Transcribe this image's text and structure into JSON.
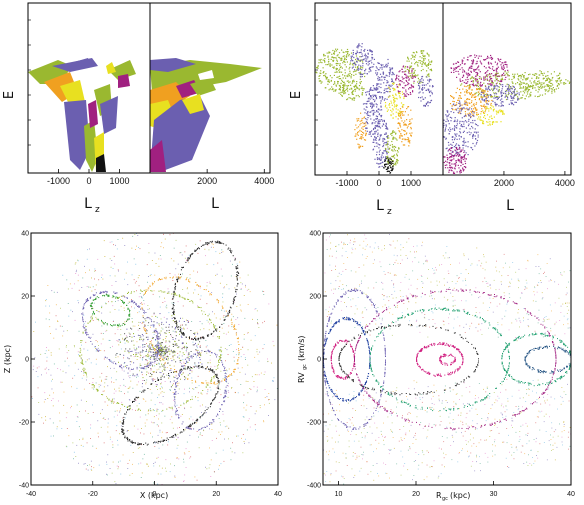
{
  "chart_data": [
    {
      "type": "scatter",
      "panel": "top-left",
      "subpanels": [
        {
          "xlabel_main": "L",
          "xlabel_sub": "z",
          "xticks": [
            "-1000",
            "0",
            "1000"
          ],
          "xlim": [
            -2000,
            2000
          ]
        },
        {
          "xlabel_main": "L",
          "xlabel_sub": "",
          "xticks": [
            "2000",
            "4000"
          ],
          "xlim": [
            0,
            4200
          ]
        }
      ],
      "ylabel": "E",
      "groups": [
        {
          "color": "#6b5fb0",
          "role": "low-energy bound groups"
        },
        {
          "color": "#9ab830",
          "role": "olive groups"
        },
        {
          "color": "#f0a020",
          "role": "orange groups"
        },
        {
          "color": "#e8e020",
          "role": "yellow groups"
        },
        {
          "color": "#a02080",
          "role": "magenta groups"
        },
        {
          "color": "#ffffff",
          "role": "white groups"
        }
      ]
    },
    {
      "type": "scatter",
      "panel": "top-right",
      "subpanels": [
        {
          "xlabel_main": "L",
          "xlabel_sub": "z",
          "xticks": [
            "-1000",
            "0",
            "1000"
          ],
          "xlim": [
            -2000,
            2000
          ]
        },
        {
          "xlabel_main": "L",
          "xlabel_sub": "",
          "xticks": [
            "2000",
            "4000"
          ],
          "xlim": [
            0,
            4200
          ]
        }
      ],
      "ylabel": "E"
    },
    {
      "type": "scatter",
      "panel": "bottom-left",
      "xlabel": "X (kpc)",
      "ylabel": "Z (kpc)",
      "xlim": [
        -40,
        40
      ],
      "ylim": [
        -40,
        40
      ],
      "xticks": [
        "-40",
        "-20",
        "0",
        "20",
        "40"
      ],
      "yticks": [
        "-40",
        "-20",
        "0",
        "20",
        "40"
      ]
    },
    {
      "type": "scatter",
      "panel": "bottom-right",
      "xlabel_main": "R",
      "xlabel_sub": "gc",
      "xlabel_unit": "(kpc)",
      "ylabel_main": "RV",
      "ylabel_sub": "gc",
      "ylabel_unit": "(km/s)",
      "xlim": [
        8,
        40
      ],
      "ylim": [
        -400,
        400
      ],
      "xticks": [
        "10",
        "20",
        "30",
        "40"
      ],
      "yticks": [
        "-400",
        "-200",
        "0",
        "200",
        "400"
      ]
    }
  ]
}
